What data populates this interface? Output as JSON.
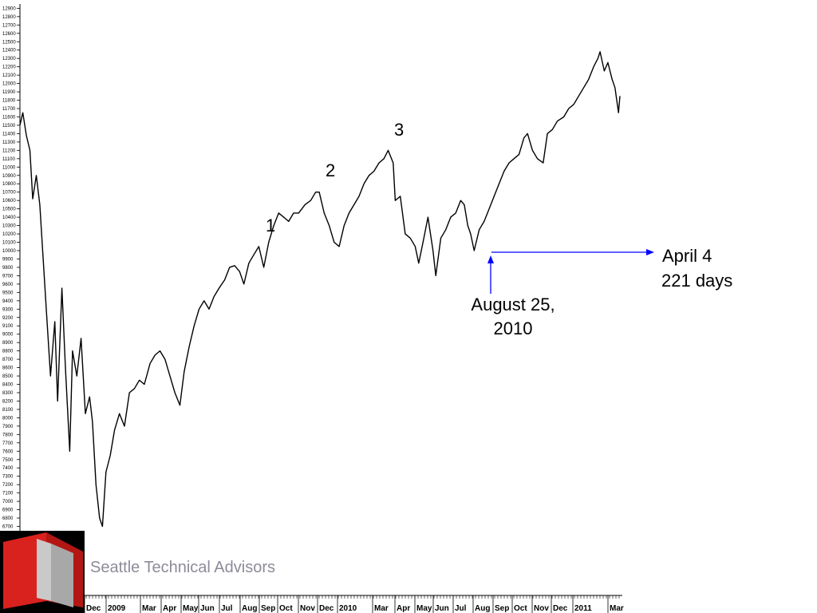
{
  "footer": {
    "company": "Seattle Technical Advisors",
    "logo_colors": {
      "red": "#d9211e",
      "gray": "#c9c9c9",
      "black": "#000000"
    }
  },
  "chart_data": {
    "type": "line",
    "ylim": [
      6600,
      12950
    ],
    "yticks": [
      6700,
      6800,
      6900,
      7000,
      7100,
      7200,
      7300,
      7400,
      7500,
      7600,
      7700,
      7800,
      7900,
      8000,
      8100,
      8200,
      8300,
      8400,
      8500,
      8600,
      8700,
      8800,
      8900,
      9000,
      9100,
      9200,
      9300,
      9400,
      9500,
      9600,
      9700,
      9800,
      9900,
      10000,
      10100,
      10200,
      10300,
      10400,
      10500,
      10600,
      10700,
      10800,
      10900,
      11000,
      11100,
      11200,
      11300,
      11400,
      11500,
      11600,
      11700,
      11800,
      11900,
      12000,
      12100,
      12200,
      12300,
      12400,
      12500,
      12600,
      12700,
      12800,
      12900
    ],
    "xticks": [
      "Dec",
      "2009",
      "Mar",
      "Apr",
      "May",
      "Jun",
      "Jul",
      "Aug",
      "Sep",
      "Oct",
      "Nov",
      "Dec",
      "2010",
      "Mar",
      "Apr",
      "May",
      "Jun",
      "Jul",
      "Aug",
      "Sep",
      "Oct",
      "Nov",
      "Dec",
      "2011",
      "Mar"
    ],
    "line_color": "#000000",
    "series": [
      {
        "name": "",
        "points": [
          [
            "2008-11-24",
            11500
          ],
          [
            "2008-11-28",
            11650
          ],
          [
            "2008-12-03",
            11380
          ],
          [
            "2008-12-08",
            11200
          ],
          [
            "2008-12-12",
            10620
          ],
          [
            "2008-12-17",
            10900
          ],
          [
            "2008-12-22",
            10550
          ],
          [
            "2008-12-31",
            9300
          ],
          [
            "2009-01-06",
            8500
          ],
          [
            "2009-01-12",
            9150
          ],
          [
            "2009-01-16",
            8200
          ],
          [
            "2009-01-22",
            9550
          ],
          [
            "2009-01-27",
            8600
          ],
          [
            "2009-02-02",
            7600
          ],
          [
            "2009-02-06",
            8800
          ],
          [
            "2009-02-12",
            8500
          ],
          [
            "2009-02-18",
            8950
          ],
          [
            "2009-02-24",
            8050
          ],
          [
            "2009-03-02",
            8250
          ],
          [
            "2009-03-06",
            7950
          ],
          [
            "2009-03-11",
            7200
          ],
          [
            "2009-03-16",
            6800
          ],
          [
            "2009-03-20",
            6700
          ],
          [
            "2009-03-25",
            7350
          ],
          [
            "2009-03-31",
            7550
          ],
          [
            "2009-04-06",
            7850
          ],
          [
            "2009-04-13",
            8050
          ],
          [
            "2009-04-20",
            7900
          ],
          [
            "2009-04-27",
            8300
          ],
          [
            "2009-05-04",
            8350
          ],
          [
            "2009-05-11",
            8450
          ],
          [
            "2009-05-18",
            8400
          ],
          [
            "2009-05-26",
            8650
          ],
          [
            "2009-06-02",
            8750
          ],
          [
            "2009-06-09",
            8800
          ],
          [
            "2009-06-16",
            8700
          ],
          [
            "2009-06-23",
            8500
          ],
          [
            "2009-06-30",
            8300
          ],
          [
            "2009-07-07",
            8150
          ],
          [
            "2009-07-13",
            8550
          ],
          [
            "2009-07-20",
            8850
          ],
          [
            "2009-07-27",
            9100
          ],
          [
            "2009-08-03",
            9300
          ],
          [
            "2009-08-10",
            9400
          ],
          [
            "2009-08-17",
            9300
          ],
          [
            "2009-08-24",
            9450
          ],
          [
            "2009-08-31",
            9550
          ],
          [
            "2009-09-08",
            9650
          ],
          [
            "2009-09-15",
            9800
          ],
          [
            "2009-09-22",
            9820
          ],
          [
            "2009-09-29",
            9750
          ],
          [
            "2009-10-05",
            9600
          ],
          [
            "2009-10-12",
            9850
          ],
          [
            "2009-10-19",
            9950
          ],
          [
            "2009-10-26",
            10050
          ],
          [
            "2009-11-02",
            9800
          ],
          [
            "2009-11-09",
            10100
          ],
          [
            "2009-11-16",
            10300
          ],
          [
            "2009-11-23",
            10450
          ],
          [
            "2009-11-30",
            10400
          ],
          [
            "2009-12-07",
            10350
          ],
          [
            "2009-12-14",
            10450
          ],
          [
            "2009-12-21",
            10450
          ],
          [
            "2009-12-30",
            10550
          ],
          [
            "2010-01-07",
            10600
          ],
          [
            "2010-01-14",
            10700
          ],
          [
            "2010-01-19",
            10700
          ],
          [
            "2010-01-26",
            10450
          ],
          [
            "2010-02-02",
            10300
          ],
          [
            "2010-02-09",
            10100
          ],
          [
            "2010-02-16",
            10050
          ],
          [
            "2010-02-23",
            10300
          ],
          [
            "2010-03-02",
            10450
          ],
          [
            "2010-03-09",
            10550
          ],
          [
            "2010-03-16",
            10650
          ],
          [
            "2010-03-23",
            10800
          ],
          [
            "2010-03-30",
            10900
          ],
          [
            "2010-04-06",
            10950
          ],
          [
            "2010-04-13",
            11050
          ],
          [
            "2010-04-20",
            11100
          ],
          [
            "2010-04-26",
            11200
          ],
          [
            "2010-05-03",
            11050
          ],
          [
            "2010-05-06",
            10600
          ],
          [
            "2010-05-13",
            10650
          ],
          [
            "2010-05-20",
            10200
          ],
          [
            "2010-05-27",
            10150
          ],
          [
            "2010-06-03",
            10050
          ],
          [
            "2010-06-08",
            9850
          ],
          [
            "2010-06-14",
            10100
          ],
          [
            "2010-06-21",
            10400
          ],
          [
            "2010-06-28",
            10000
          ],
          [
            "2010-07-02",
            9700
          ],
          [
            "2010-07-09",
            10150
          ],
          [
            "2010-07-16",
            10250
          ],
          [
            "2010-07-23",
            10400
          ],
          [
            "2010-07-30",
            10450
          ],
          [
            "2010-08-06",
            10600
          ],
          [
            "2010-08-11",
            10550
          ],
          [
            "2010-08-16",
            10300
          ],
          [
            "2010-08-20",
            10200
          ],
          [
            "2010-08-25",
            10000
          ],
          [
            "2010-09-01",
            10250
          ],
          [
            "2010-09-08",
            10350
          ],
          [
            "2010-09-15",
            10500
          ],
          [
            "2010-09-22",
            10650
          ],
          [
            "2010-09-29",
            10800
          ],
          [
            "2010-10-06",
            10950
          ],
          [
            "2010-10-13",
            11050
          ],
          [
            "2010-10-20",
            11100
          ],
          [
            "2010-10-27",
            11150
          ],
          [
            "2010-11-03",
            11350
          ],
          [
            "2010-11-08",
            11400
          ],
          [
            "2010-11-15",
            11200
          ],
          [
            "2010-11-22",
            11100
          ],
          [
            "2010-11-30",
            11050
          ],
          [
            "2010-12-06",
            11400
          ],
          [
            "2010-12-13",
            11450
          ],
          [
            "2010-12-20",
            11550
          ],
          [
            "2010-12-29",
            11600
          ],
          [
            "2011-01-05",
            11700
          ],
          [
            "2011-01-12",
            11750
          ],
          [
            "2011-01-19",
            11850
          ],
          [
            "2011-01-26",
            11950
          ],
          [
            "2011-02-02",
            12050
          ],
          [
            "2011-02-09",
            12200
          ],
          [
            "2011-02-15",
            12300
          ],
          [
            "2011-02-18",
            12380
          ],
          [
            "2011-02-24",
            12150
          ],
          [
            "2011-03-01",
            12250
          ],
          [
            "2011-03-07",
            12050
          ],
          [
            "2011-03-11",
            11950
          ],
          [
            "2011-03-16",
            11650
          ],
          [
            "2011-03-18",
            11850
          ]
        ]
      }
    ],
    "wave_labels": [
      "1",
      "2",
      "3"
    ],
    "annotations": {
      "start_line1": "August 25,",
      "start_line2": "2010",
      "end_line1": "April 4",
      "end_line2": "221 days",
      "arrow_color": "#0000ff",
      "level": 10000
    },
    "grid": false
  }
}
